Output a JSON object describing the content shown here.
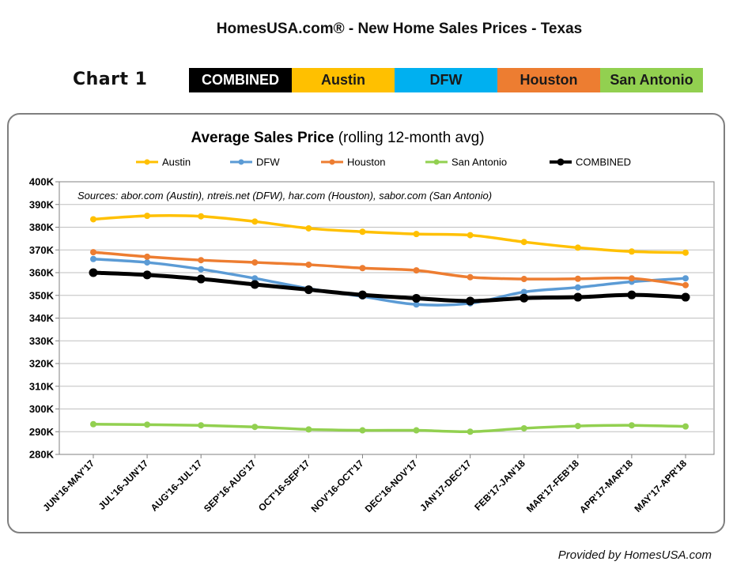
{
  "header": {
    "title": "HomesUSA.com® - New Home Sales Prices - Texas",
    "chart_number": "Chart 1"
  },
  "legend_bar": [
    {
      "label": "COMBINED",
      "background": "#000000",
      "text_color": "#ffffff"
    },
    {
      "label": "Austin",
      "background": "#ffc000",
      "text_color": "#1a1a1a"
    },
    {
      "label": "DFW",
      "background": "#00b0f0",
      "text_color": "#1a1a1a"
    },
    {
      "label": "Houston",
      "background": "#ed7d31",
      "text_color": "#1a1a1a"
    },
    {
      "label": "San Antonio",
      "background": "#92d050",
      "text_color": "#1a1a1a"
    }
  ],
  "footer": {
    "credit": "Provided by HomesUSA.com"
  },
  "chart_data": {
    "type": "line",
    "title": "Average Sales Price",
    "subtitle": "(rolling 12-month avg)",
    "annotation": "Sources:  abor.com (Austin), ntreis.net (DFW), har.com (Houston), sabor.com (San Antonio)",
    "xlabel": "",
    "ylabel": "",
    "ylim": [
      280,
      400
    ],
    "y_ticks": [
      "280K",
      "290K",
      "300K",
      "310K",
      "320K",
      "330K",
      "340K",
      "350K",
      "360K",
      "370K",
      "380K",
      "390K",
      "400K"
    ],
    "grid": true,
    "legend_position": "top",
    "categories": [
      "JUN'16-MAY'17",
      "JUL'16-JUN'17",
      "AUG'16-JUL'17",
      "SEP'16-AUG'17",
      "OCT'16-SEP'17",
      "NOV'16-OCT'17",
      "DEC'16-NOV'17",
      "JAN'17-DEC'17",
      "FEB'17-JAN'18",
      "MAR'17-FEB'18",
      "APR'17-MAR'18",
      "MAY'17-APR'18"
    ],
    "series": [
      {
        "name": "Austin",
        "color": "#ffc000",
        "values": [
          383.5,
          385.0,
          384.8,
          382.5,
          379.5,
          378.0,
          377.0,
          376.5,
          373.5,
          371.0,
          369.3,
          368.8
        ]
      },
      {
        "name": "DFW",
        "color": "#5b9bd5",
        "values": [
          366.0,
          364.5,
          361.5,
          357.5,
          353.0,
          349.5,
          346.0,
          346.5,
          351.5,
          353.5,
          356.0,
          357.5
        ]
      },
      {
        "name": "Houston",
        "color": "#ed7d31",
        "values": [
          369.0,
          367.0,
          365.5,
          364.5,
          363.5,
          362.0,
          361.0,
          358.0,
          357.2,
          357.3,
          357.5,
          354.5
        ]
      },
      {
        "name": "San Antonio",
        "color": "#92d050",
        "values": [
          293.3,
          293.1,
          292.8,
          292.1,
          291.0,
          290.6,
          290.6,
          290.0,
          291.5,
          292.5,
          292.8,
          292.3
        ]
      },
      {
        "name": "COMBINED",
        "color": "#000000",
        "values": [
          360.0,
          359.0,
          357.2,
          354.8,
          352.5,
          350.2,
          348.7,
          347.5,
          348.8,
          349.2,
          350.2,
          349.2
        ]
      }
    ]
  }
}
